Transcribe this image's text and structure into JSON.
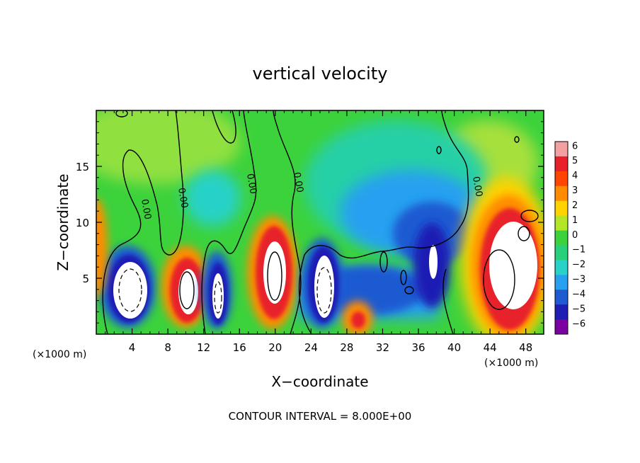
{
  "chart_data": {
    "type": "heatmap",
    "title": "vertical velocity",
    "xlabel": "X−coordinate",
    "ylabel": "Z−coordinate",
    "x_unit": "(×1000 m)",
    "z_unit": "(×1000 m)",
    "xlim": [
      0,
      50
    ],
    "ylim": [
      0,
      20
    ],
    "x_ticks": [
      4,
      8,
      12,
      16,
      20,
      24,
      28,
      32,
      36,
      40,
      44,
      48
    ],
    "y_ticks": [
      5,
      10,
      15
    ],
    "colorbar": {
      "labels": [
        "6",
        "5",
        "4",
        "3",
        "2",
        "1",
        "0",
        "−1",
        "−2",
        "−3",
        "−4",
        "−5",
        "−6"
      ],
      "range": [
        -6,
        6
      ],
      "colors": [
        "#f4a0a0",
        "#e8202a",
        "#ff4500",
        "#ff8c00",
        "#ffd200",
        "#b4e628",
        "#3cd23c",
        "#28d07a",
        "#28d2c8",
        "#28a0f0",
        "#1e5ad2",
        "#1e1eb4",
        "#7d00a0"
      ]
    },
    "contour_label": "0.00",
    "contour_levels": [
      0
    ],
    "contour_interval_text": "CONTOUR INTERVAL = 8.000E+00",
    "features": [
      {
        "x": 5,
        "z": 4,
        "w": -7
      },
      {
        "x": 9.5,
        "z": 4,
        "w": 7
      },
      {
        "x": 13.5,
        "z": 4,
        "w": -6
      },
      {
        "x": 20,
        "z": 6,
        "w": 7
      },
      {
        "x": 25,
        "z": 4,
        "w": -7
      },
      {
        "x": 29.5,
        "z": 1.5,
        "w": 4
      },
      {
        "x": 33,
        "z": 5,
        "w": -4
      },
      {
        "x": 37,
        "z": 7,
        "w": -5
      },
      {
        "x": 44.5,
        "z": 6,
        "w": 7
      },
      {
        "x": 46,
        "z": 12,
        "w": 3
      }
    ]
  }
}
